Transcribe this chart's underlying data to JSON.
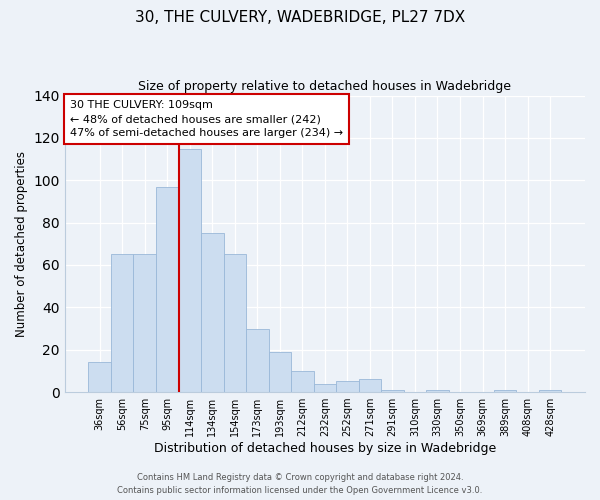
{
  "title_line1": "30, THE CULVERY, WADEBRIDGE, PL27 7DX",
  "title_line2": "Size of property relative to detached houses in Wadebridge",
  "xlabel": "Distribution of detached houses by size in Wadebridge",
  "ylabel": "Number of detached properties",
  "bar_color": "#ccddf0",
  "bar_edge_color": "#9ab8d8",
  "bins": [
    "36sqm",
    "56sqm",
    "75sqm",
    "95sqm",
    "114sqm",
    "134sqm",
    "154sqm",
    "173sqm",
    "193sqm",
    "212sqm",
    "232sqm",
    "252sqm",
    "271sqm",
    "291sqm",
    "310sqm",
    "330sqm",
    "350sqm",
    "369sqm",
    "389sqm",
    "408sqm",
    "428sqm"
  ],
  "values": [
    14,
    65,
    65,
    97,
    115,
    75,
    65,
    30,
    19,
    10,
    4,
    5,
    6,
    1,
    0,
    1,
    0,
    0,
    1,
    0,
    1
  ],
  "ylim": [
    0,
    140
  ],
  "yticks": [
    0,
    20,
    40,
    60,
    80,
    100,
    120,
    140
  ],
  "marker_bar_index": 4,
  "marker_label": "30 THE CULVERY: 109sqm",
  "annotation_line1": "← 48% of detached houses are smaller (242)",
  "annotation_line2": "47% of semi-detached houses are larger (234) →",
  "marker_color": "#cc0000",
  "annotation_box_facecolor": "#ffffff",
  "annotation_box_edgecolor": "#cc0000",
  "footer_line1": "Contains HM Land Registry data © Crown copyright and database right 2024.",
  "footer_line2": "Contains public sector information licensed under the Open Government Licence v3.0.",
  "background_color": "#edf2f8",
  "grid_color": "#ffffff",
  "spine_color": "#bbccdd"
}
